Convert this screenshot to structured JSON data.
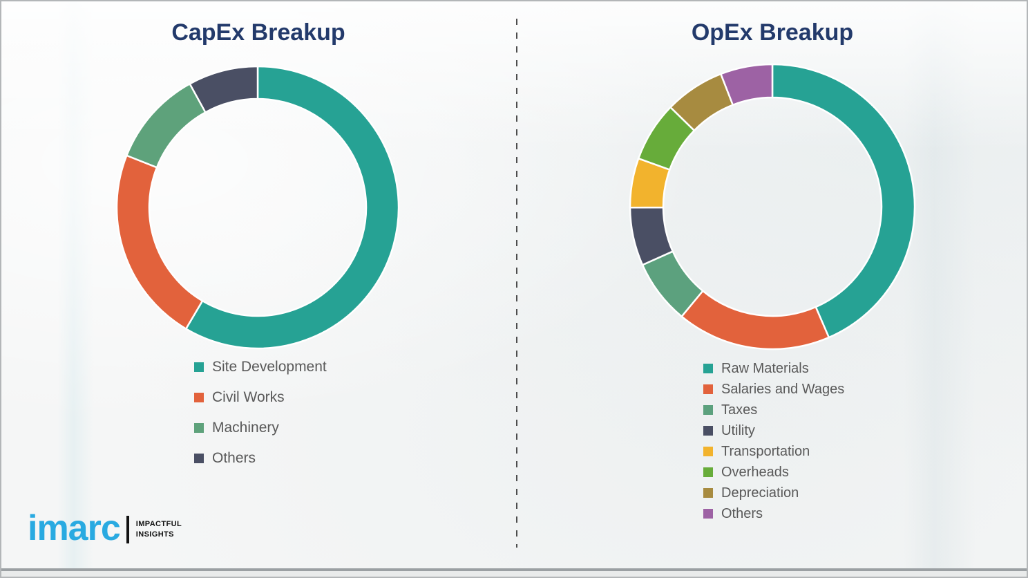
{
  "page": {
    "background_color": "#f5f6f6",
    "title_color": "#233a6b",
    "legend_text_color": "#595959",
    "divider_color": "#4d4d4d"
  },
  "chart_data": [
    {
      "type": "pie",
      "subtype": "donut",
      "title": "CapEx Breakup",
      "legend_position": "below-left",
      "start_angle_deg": 0,
      "direction": "clockwise-from-top",
      "categories": [
        "Site Development",
        "Civil Works",
        "Machinery",
        "Others"
      ],
      "values": [
        58.5,
        22.5,
        11,
        8
      ],
      "unit": "percent",
      "colors": [
        "#26A294",
        "#E2623C",
        "#5EA27B",
        "#4A4F64"
      ]
    },
    {
      "type": "pie",
      "subtype": "donut",
      "title": "OpEx Breakup",
      "legend_position": "below-left",
      "start_angle_deg": 0,
      "direction": "clockwise-from-top",
      "categories": [
        "Raw Materials",
        "Salaries and Wages",
        "Taxes",
        "Utility",
        "Transportation",
        "Overheads",
        "Depreciation",
        "Others"
      ],
      "values": [
        43.5,
        17.5,
        7.3,
        6.6,
        5.6,
        6.8,
        6.8,
        5.9
      ],
      "unit": "percent",
      "colors": [
        "#26A294",
        "#E2623C",
        "#5CA17E",
        "#4A4F64",
        "#F2B32D",
        "#67AC3A",
        "#A78B40",
        "#9D62A4"
      ]
    }
  ],
  "logo": {
    "brand": "imarc",
    "brand_color": "#29aae1",
    "tagline_line1": "IMPACTFUL",
    "tagline_line2": "INSIGHTS"
  }
}
